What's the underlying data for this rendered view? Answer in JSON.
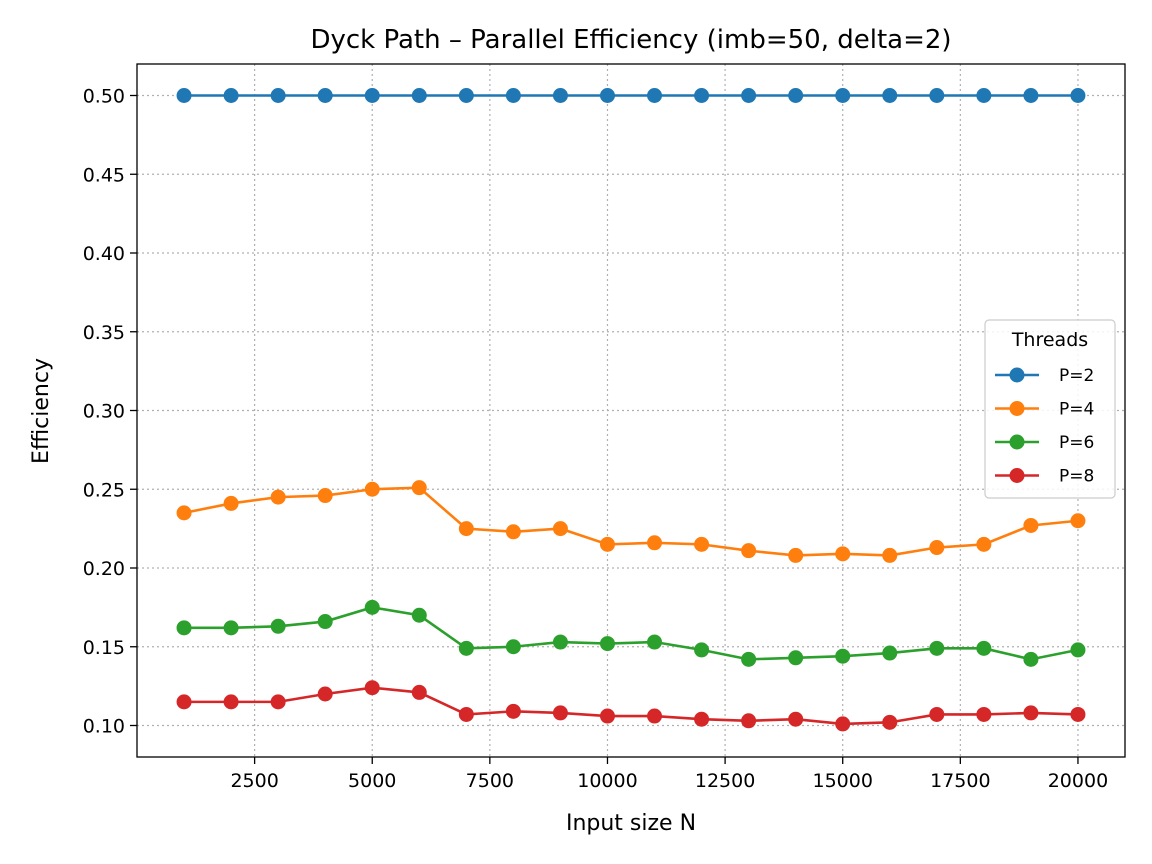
{
  "chart_data": {
    "type": "line",
    "title": "Dyck Path – Parallel Efficiency (imb=50, delta=2)",
    "xlabel": "Input size N",
    "ylabel": "Efficiency",
    "xlim": [
      0,
      21000
    ],
    "ylim": [
      0.08,
      0.52
    ],
    "xticks": [
      2500,
      5000,
      7500,
      10000,
      12500,
      15000,
      17500,
      20000
    ],
    "xtick_labels": [
      "2500",
      "5000",
      "7500",
      "10000",
      "12500",
      "15000",
      "17500",
      "20000"
    ],
    "yticks": [
      0.1,
      0.15,
      0.2,
      0.25,
      0.3,
      0.35,
      0.4,
      0.45,
      0.5
    ],
    "ytick_labels": [
      "0.10",
      "0.15",
      "0.20",
      "0.25",
      "0.30",
      "0.35",
      "0.40",
      "0.45",
      "0.50"
    ],
    "grid": true,
    "legend": {
      "title": "Threads",
      "placement": "center-right"
    },
    "x": [
      1000,
      2000,
      3000,
      4000,
      5000,
      6000,
      7000,
      8000,
      9000,
      10000,
      11000,
      12000,
      13000,
      14000,
      15000,
      16000,
      17000,
      18000,
      19000,
      20000
    ],
    "series": [
      {
        "name": "P=2",
        "color": "#1f77b4",
        "values": [
          0.5,
          0.5,
          0.5,
          0.5,
          0.5,
          0.5,
          0.5,
          0.5,
          0.5,
          0.5,
          0.5,
          0.5,
          0.5,
          0.5,
          0.5,
          0.5,
          0.5,
          0.5,
          0.5,
          0.5
        ]
      },
      {
        "name": "P=4",
        "color": "#ff7f0e",
        "values": [
          0.235,
          0.241,
          0.245,
          0.246,
          0.25,
          0.251,
          0.225,
          0.223,
          0.225,
          0.215,
          0.216,
          0.215,
          0.211,
          0.208,
          0.209,
          0.208,
          0.213,
          0.215,
          0.227,
          0.23
        ]
      },
      {
        "name": "P=6",
        "color": "#2ca02c",
        "values": [
          0.162,
          0.162,
          0.163,
          0.166,
          0.175,
          0.17,
          0.149,
          0.15,
          0.153,
          0.152,
          0.153,
          0.148,
          0.142,
          0.143,
          0.144,
          0.146,
          0.149,
          0.149,
          0.142,
          0.148
        ]
      },
      {
        "name": "P=8",
        "color": "#d62728",
        "values": [
          0.115,
          0.115,
          0.115,
          0.12,
          0.124,
          0.121,
          0.107,
          0.109,
          0.108,
          0.106,
          0.106,
          0.104,
          0.103,
          0.104,
          0.101,
          0.102,
          0.107,
          0.107,
          0.108,
          0.107
        ]
      }
    ]
  }
}
